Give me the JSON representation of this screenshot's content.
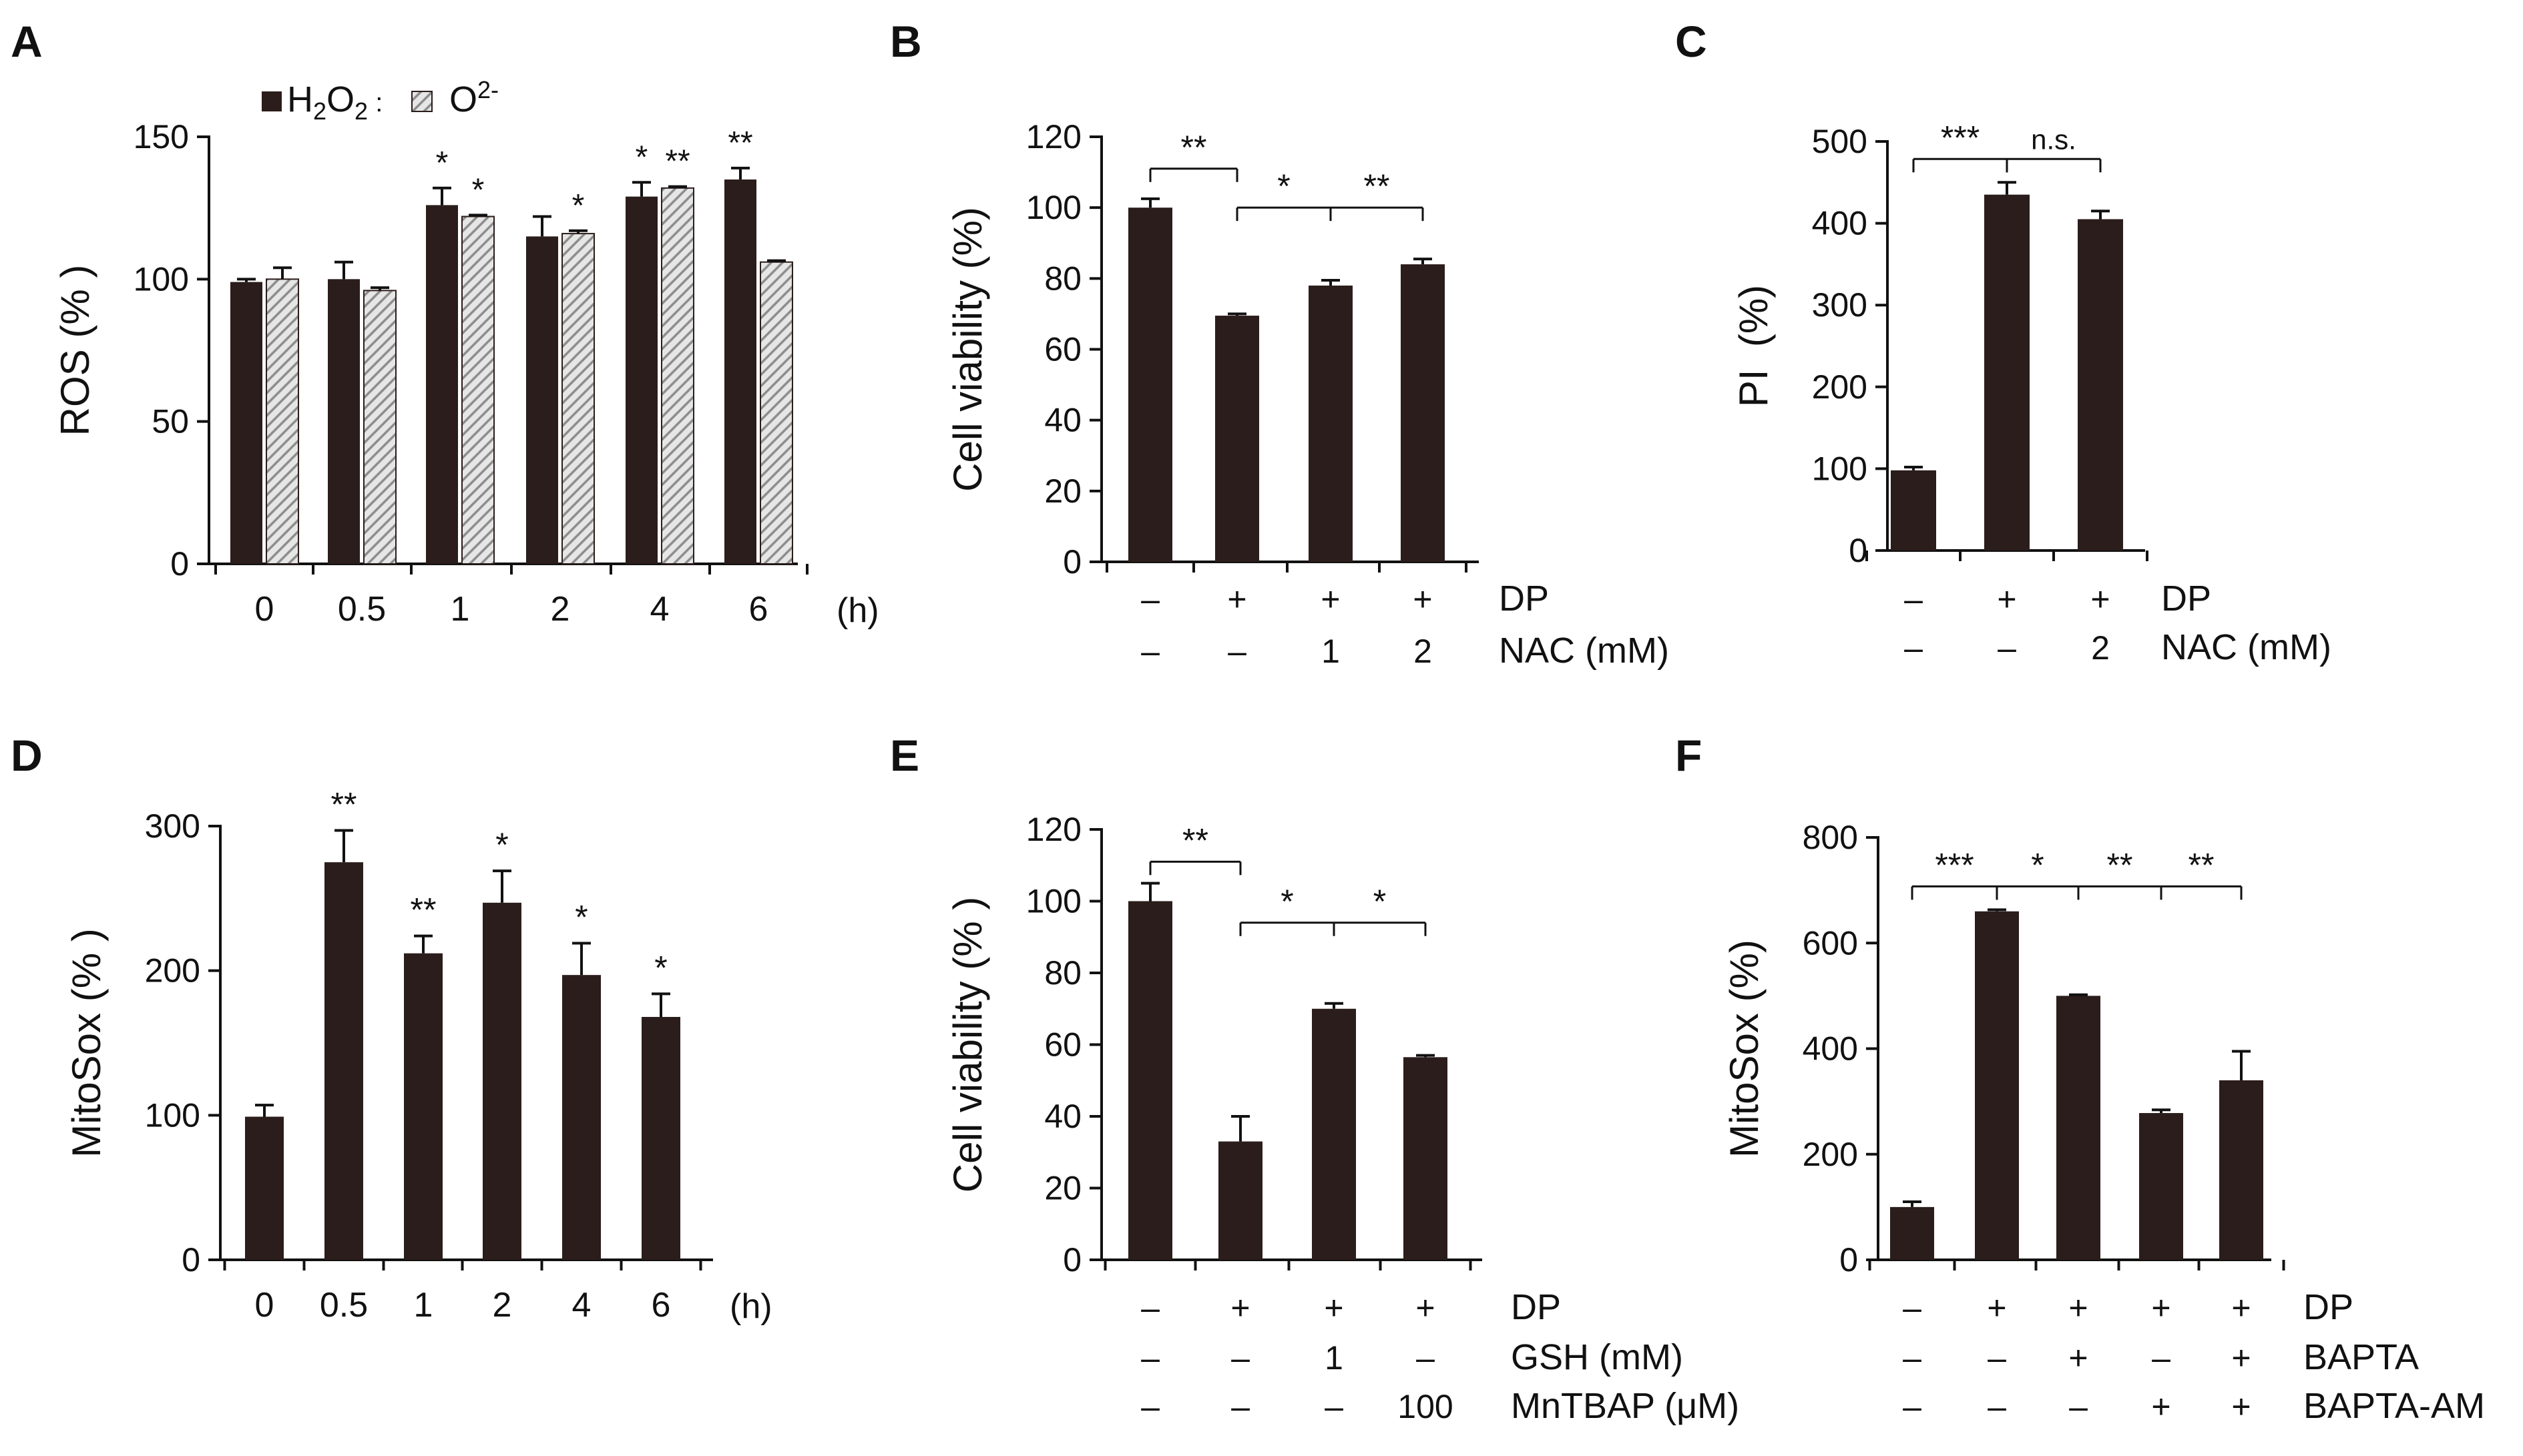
{
  "chart_data": [
    {
      "panel": "A",
      "type": "bar",
      "categories": [
        "0",
        "0.5",
        "1",
        "2",
        "4",
        "6"
      ],
      "x_unit": "(h)",
      "ylabel": "ROS (% )",
      "ylim": [
        0,
        150
      ],
      "yticks": [
        0,
        50,
        100,
        150
      ],
      "series": [
        {
          "name": "H2O2",
          "style": "solid",
          "values": [
            99,
            100,
            126,
            115,
            129,
            135
          ],
          "errors": [
            1,
            6,
            6,
            7,
            5,
            4
          ]
        },
        {
          "name": "O2-",
          "style": "hatched",
          "values": [
            100,
            96,
            122,
            116,
            132,
            106
          ],
          "errors": [
            4,
            1,
            0.5,
            1,
            0.5,
            0.5
          ]
        }
      ],
      "legend": {
        "h2o2": {
          "pre": "H",
          "sub1": "2",
          "mid": "O",
          "sub2": "2",
          "tail": " :"
        },
        "o2": {
          "base": "O",
          "sup": "2-"
        }
      },
      "significance": [
        {
          "series": 0,
          "category": 2,
          "label": "*"
        },
        {
          "series": 1,
          "category": 2,
          "label": "*"
        },
        {
          "series": 1,
          "category": 3,
          "label": "*"
        },
        {
          "series": 0,
          "category": 4,
          "label": "*"
        },
        {
          "series": 1,
          "category": 4,
          "label": "**"
        },
        {
          "series": 0,
          "category": 5,
          "label": "**"
        }
      ]
    },
    {
      "panel": "B",
      "type": "bar",
      "ylabel": "Cell viability (%)",
      "ylim": [
        0,
        120
      ],
      "yticks": [
        0,
        20,
        40,
        60,
        80,
        100,
        120
      ],
      "values": [
        100,
        69.5,
        78,
        84
      ],
      "errors": [
        2.5,
        0.5,
        1.5,
        1.5
      ],
      "condition_rows": [
        {
          "label": "DP",
          "values": [
            "–",
            "+",
            "+",
            "+"
          ]
        },
        {
          "label": "NAC (mM)",
          "values": [
            "–",
            "–",
            "1",
            "2"
          ]
        }
      ],
      "brackets": [
        {
          "from": 0,
          "to": 1,
          "label": "**"
        },
        {
          "from": 1,
          "to": 2,
          "label": "*"
        },
        {
          "from": 2,
          "to": 3,
          "label": "**"
        }
      ]
    },
    {
      "panel": "C",
      "type": "bar",
      "ylabel": "PI  (%)",
      "ylim": [
        0,
        500
      ],
      "yticks": [
        0,
        100,
        200,
        300,
        400,
        500
      ],
      "values": [
        98,
        435,
        405
      ],
      "errors": [
        4,
        15,
        10
      ],
      "condition_rows": [
        {
          "label": "DP",
          "values": [
            "–",
            "+",
            "+"
          ]
        },
        {
          "label": "NAC (mM)",
          "values": [
            "–",
            "–",
            "2"
          ]
        }
      ],
      "brackets": [
        {
          "from": 0,
          "to": 1,
          "label": "***"
        },
        {
          "from": 1,
          "to": 2,
          "label": "n.s."
        }
      ]
    },
    {
      "panel": "D",
      "type": "bar",
      "categories": [
        "0",
        "0.5",
        "1",
        "2",
        "4",
        "6"
      ],
      "x_unit": "(h)",
      "ylabel": "MitoSox (% )",
      "ylim": [
        0,
        300
      ],
      "yticks": [
        0,
        100,
        200,
        300
      ],
      "values": [
        99,
        275,
        212,
        247,
        197,
        168
      ],
      "errors": [
        8,
        22,
        12,
        22,
        22,
        16
      ],
      "significance": [
        {
          "category": 1,
          "label": "**"
        },
        {
          "category": 2,
          "label": "**"
        },
        {
          "category": 3,
          "label": "*"
        },
        {
          "category": 4,
          "label": "*"
        },
        {
          "category": 5,
          "label": "*"
        }
      ]
    },
    {
      "panel": "E",
      "type": "bar",
      "ylabel": "Cell viability (% )",
      "ylim": [
        0,
        120
      ],
      "yticks": [
        0,
        20,
        40,
        60,
        80,
        100,
        120
      ],
      "values": [
        100,
        33,
        70,
        56.5
      ],
      "errors": [
        5,
        7,
        1.5,
        0.5
      ],
      "condition_rows": [
        {
          "label": "DP",
          "values": [
            "–",
            "+",
            "+",
            "+"
          ]
        },
        {
          "label": "GSH (mM)",
          "values": [
            "–",
            "–",
            "1",
            "–"
          ]
        },
        {
          "label": "MnTBAP (μM)",
          "values": [
            "–",
            "–",
            "–",
            "100"
          ]
        }
      ],
      "brackets": [
        {
          "from": 0,
          "to": 1,
          "label": "**"
        },
        {
          "from": 1,
          "to": 2,
          "label": "*"
        },
        {
          "from": 2,
          "to": 3,
          "label": "*"
        }
      ]
    },
    {
      "panel": "F",
      "type": "bar",
      "ylabel": "MitoSox (%)",
      "ylim": [
        0,
        800
      ],
      "yticks": [
        0,
        200,
        400,
        600,
        800
      ],
      "values": [
        100,
        660,
        500,
        278,
        340
      ],
      "errors": [
        10,
        3,
        2,
        6,
        55
      ],
      "condition_rows": [
        {
          "label": "DP",
          "values": [
            "–",
            "+",
            "+",
            "+",
            "+"
          ]
        },
        {
          "label": "BAPTA",
          "values": [
            "–",
            "–",
            "+",
            "–",
            "+"
          ]
        },
        {
          "label": "BAPTA-AM",
          "values": [
            "–",
            "–",
            "–",
            "+",
            "+"
          ]
        }
      ],
      "brackets": [
        {
          "from": 0,
          "to": 1,
          "label": "***"
        },
        {
          "from": 1,
          "to": 2,
          "label": "*"
        },
        {
          "from": 2,
          "to": 3,
          "label": "**"
        },
        {
          "from": 3,
          "to": 4,
          "label": "**"
        }
      ]
    }
  ],
  "colors": {
    "bar": "#2b1d1b",
    "hatch_bg": "#e6e6e6",
    "hatch_line": "#8c8c8c",
    "axis": "#111111"
  }
}
